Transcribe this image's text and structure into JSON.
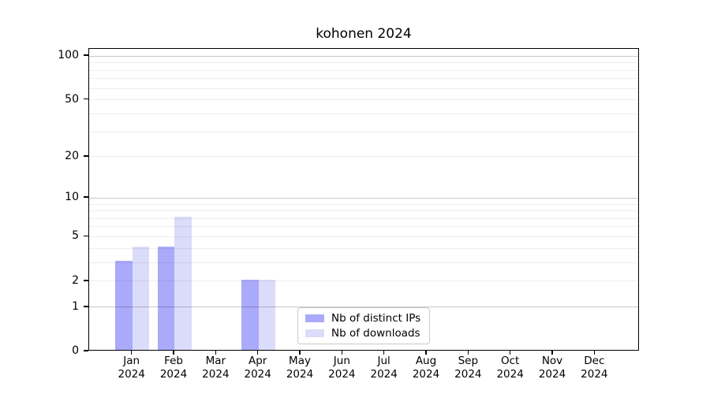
{
  "figure": {
    "title": "kohonen 2024",
    "background_color": "#ffffff"
  },
  "chart_data": {
    "type": "bar",
    "title": "kohonen 2024",
    "categories": [
      "Jan",
      "Feb",
      "Mar",
      "Apr",
      "May",
      "Jun",
      "Jul",
      "Aug",
      "Sep",
      "Oct",
      "Nov",
      "Dec"
    ],
    "year_label": "2024",
    "series": [
      {
        "name": "Nb of distinct IPs",
        "color": "#aaaafa",
        "values": [
          3,
          4,
          0,
          2,
          0,
          0,
          0,
          0,
          0,
          0,
          0,
          0
        ]
      },
      {
        "name": "Nb of downloads",
        "color": "#dbdbfa",
        "values": [
          4,
          7,
          0,
          2,
          0,
          0,
          0,
          0,
          0,
          0,
          0,
          0
        ]
      }
    ],
    "y_ticks": [
      0,
      1,
      2,
      5,
      10,
      20,
      50,
      100
    ],
    "y_scale": "log10(1+x)",
    "ylim": [
      0,
      110
    ],
    "xlabel": "",
    "ylabel": "",
    "grid": {
      "on": true,
      "major_lines": [
        1,
        10,
        100
      ],
      "minor_lines": [
        2,
        3,
        4,
        5,
        6,
        7,
        8,
        9,
        20,
        30,
        40,
        50,
        60,
        70,
        80,
        90
      ],
      "major_color": "#c9c9c9",
      "minor_color": "#ededed"
    },
    "legend": {
      "position": "lower center",
      "entries": [
        "Nb of distinct IPs",
        "Nb of downloads"
      ]
    }
  }
}
